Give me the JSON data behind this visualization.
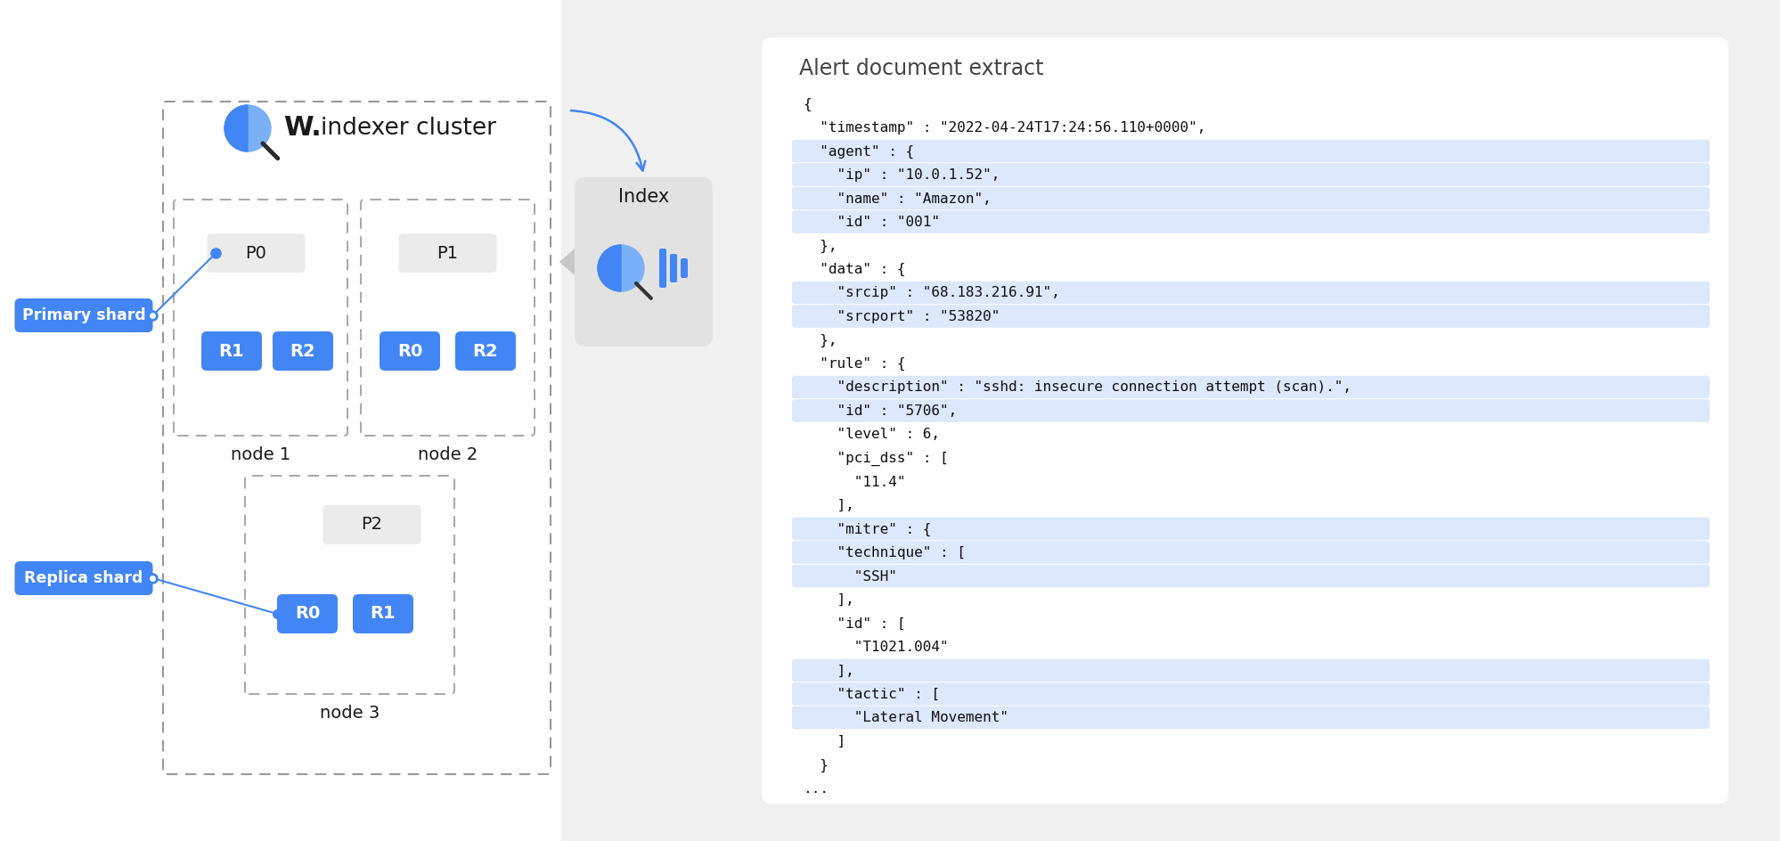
{
  "bg_color": "#f5f5f5",
  "white": "#ffffff",
  "blue": "#4285f4",
  "blue_dark": "#2060c0",
  "blue_light": "#7ab0f8",
  "dark_text": "#1a1a1a",
  "gray_text": "#555555",
  "shard_p_bg": "#ebebeb",
  "code_highlight1": "#dce8fb",
  "code_highlight2": "#dce8fb",
  "panel_bg": "#f0f0f0",
  "index_box_bg": "#e4e4e4",
  "title": "Alert document extract",
  "cluster_label": "indexer cluster",
  "index_label": "Index",
  "primary_label": "Primary shard",
  "replica_label": "Replica shard",
  "node1_label": "node 1",
  "node2_label": "node 2",
  "node3_label": "node 3",
  "code_lines": [
    "{",
    "  \"timestamp\" : \"2022-04-24T17:24:56.110+0000\",",
    "  \"agent\" : {",
    "    \"ip\" : \"10.0.1.52\",",
    "    \"name\" : \"Amazon\",",
    "    \"id\" : \"001\"",
    "  },",
    "  \"data\" : {",
    "    \"srcip\" : \"68.183.216.91\",",
    "    \"srcport\" : \"53820\"",
    "  },",
    "  \"rule\" : {",
    "    \"description\" : \"sshd: insecure connection attempt (scan).\",",
    "    \"id\" : \"5706\",",
    "    \"level\" : 6,",
    "    \"pci_dss\" : [",
    "      \"11.4\"",
    "    ],",
    "    \"mitre\" : {",
    "    \"technique\" : [",
    "      \"SSH\"",
    "    ],",
    "    \"id\" : [",
    "      \"T1021.004\"",
    "    ],",
    "    \"tactic\" : [",
    "      \"Lateral Movement\"",
    "    ]",
    "  }",
    "..."
  ],
  "highlight_lines": [
    3,
    4,
    5,
    6,
    9,
    10,
    13,
    14,
    19,
    20,
    21,
    25,
    26,
    27
  ]
}
